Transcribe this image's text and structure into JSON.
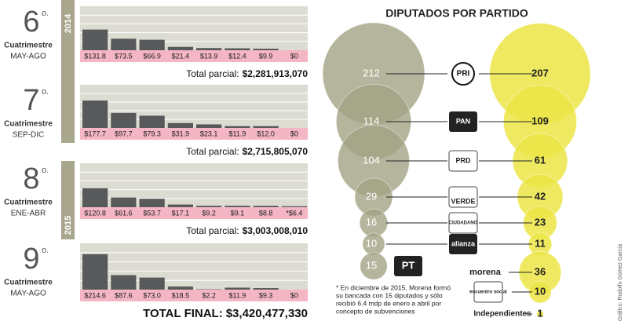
{
  "chart_data": [
    {
      "type": "bar",
      "ordinal": "6",
      "ordinal_suffix": "o.",
      "label": "Cuatrimestre",
      "period": "MAY-AGO",
      "year": "2014",
      "values": [
        131.8,
        73.5,
        66.9,
        21.4,
        13.9,
        12.4,
        9.9,
        0
      ],
      "value_labels": [
        "$131.8",
        "$73.5",
        "$66.9",
        "$21.4",
        "$13.9",
        "$12.4",
        "$9.9",
        "$0"
      ],
      "color": "#58595b",
      "ylim": [
        0,
        280
      ],
      "total_label": "Total parcial:",
      "total": "$2,281,913,070"
    },
    {
      "type": "bar",
      "ordinal": "7",
      "ordinal_suffix": "o.",
      "label": "Cuatrimestre",
      "period": "SEP-DIC",
      "values": [
        177.7,
        97.7,
        79.3,
        31.9,
        23.1,
        11.9,
        12.0,
        0
      ],
      "value_labels": [
        "$177.7",
        "$97.7",
        "$79.3",
        "$31.9",
        "$23.1",
        "$11.9",
        "$12.0",
        "$0"
      ],
      "color": "#58595b",
      "ylim": [
        0,
        280
      ],
      "total_label": "Total parcial:",
      "total": "$2,715,805,070"
    },
    {
      "type": "bar",
      "ordinal": "8",
      "ordinal_suffix": "o.",
      "label": "Cuatrimestre",
      "period": "ENE-ABR",
      "year": "2015",
      "values": [
        120.8,
        61.6,
        53.7,
        17.1,
        9.2,
        9.1,
        8.8,
        6.4
      ],
      "value_labels": [
        "$120.8",
        "$61.6",
        "$53.7",
        "$17.1",
        "$9.2",
        "$9.1",
        "$8.8",
        "*$6.4"
      ],
      "color": "#58595b",
      "ylim": [
        0,
        280
      ],
      "total_label": "Total parcial:",
      "total": "$3,003,008,010"
    },
    {
      "type": "bar",
      "ordinal": "9",
      "ordinal_suffix": "o.",
      "label": "Cuatrimestre",
      "period": "MAY-AGO",
      "values": [
        214.6,
        87.6,
        73.0,
        18.5,
        2.2,
        11.9,
        9.3,
        0
      ],
      "value_labels": [
        "$214.6",
        "$87.6",
        "$73.0",
        "$18.5",
        "$2.2",
        "$11.9",
        "$9.3",
        "$0"
      ],
      "color": "#58595b",
      "ylim": [
        0,
        280
      ],
      "total_label": "TOTAL FINAL:",
      "total": "$3,420,477,330"
    },
    {
      "type": "bubble",
      "title": "DIPUTADOS POR PARTIDO",
      "categories": [
        "PRI",
        "PAN",
        "PRD",
        "VERDE",
        "CIUDADANO",
        "alianza",
        "PT",
        "morena",
        "encuentro social",
        "Independientes"
      ],
      "series": [
        {
          "color": "#a3a285",
          "values": [
            212,
            114,
            104,
            29,
            16,
            10,
            15,
            null,
            null,
            null
          ]
        },
        {
          "color": "#ece546",
          "values": [
            207,
            109,
            61,
            42,
            23,
            11,
            null,
            36,
            10,
            1
          ]
        }
      ],
      "note": [
        "* En diciembre de 2015, Morena formó",
        "su bancada con 15 diputados y sólo",
        "recibió 6.4 mdp de enero a abril por",
        "concepto de subvenciones"
      ],
      "credit": "Gráfico: Rodolfo Gómez García"
    }
  ]
}
